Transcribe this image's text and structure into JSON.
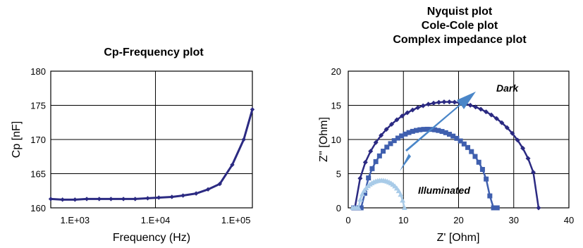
{
  "chart_data": [
    {
      "type": "line",
      "title": "Cp-Frequency plot",
      "xlabel": "Frequency (Hz)",
      "ylabel": "Cp [nF]",
      "xscale": "log",
      "xlim": [
        500,
        160000
      ],
      "ylim": [
        160,
        180
      ],
      "xticks": [
        1000,
        10000,
        100000
      ],
      "xtick_labels": [
        "1.E+03",
        "1.E+04",
        "1.E+05"
      ],
      "yticks": [
        160,
        165,
        170,
        175,
        180
      ],
      "ytick_labels": [
        "160",
        "165",
        "170",
        "175",
        "180"
      ],
      "grid": true,
      "line_color": "#2b2a82",
      "series": [
        {
          "x": [
            500,
            700,
            1000,
            1400,
            2000,
            2800,
            4000,
            5600,
            8000,
            11000,
            16000,
            22000,
            32000,
            45000,
            63000,
            90000,
            125000,
            160000
          ],
          "y": [
            161.3,
            161.2,
            161.2,
            161.3,
            161.3,
            161.3,
            161.3,
            161.3,
            161.4,
            161.5,
            161.6,
            161.8,
            162.1,
            162.7,
            163.5,
            166.3,
            170.0,
            174.4
          ]
        }
      ]
    },
    {
      "type": "scatter",
      "title_lines": [
        "Nyquist plot",
        "Cole-Cole plot",
        "Complex impedance plot"
      ],
      "xlabel": "Z' [Ohm]",
      "ylabel": "Z'' [Ohm]",
      "xlim": [
        0,
        40
      ],
      "ylim": [
        0,
        20
      ],
      "xticks": [
        0,
        10,
        20,
        30,
        40
      ],
      "yticks": [
        0,
        5,
        10,
        15,
        20
      ],
      "grid": true,
      "annotations": [
        "Dark",
        "Illuminated"
      ],
      "arrow_color": "#4a86c8",
      "series": [
        {
          "marker": "diamond",
          "color": "#2b2a82",
          "center": 18,
          "radius": 16.5,
          "start": 1.2,
          "end": 34.5,
          "points": 36
        },
        {
          "marker": "square",
          "color": "#3f5fae",
          "center": 14.3,
          "radius": 11.5,
          "start": 1.0,
          "end": 27.0,
          "points": 40
        },
        {
          "marker": "triangle",
          "color": "#a8cbe8",
          "center": 6.0,
          "radius": 4.0,
          "start": 0.8,
          "end": 10.2,
          "points": 28
        }
      ]
    }
  ]
}
